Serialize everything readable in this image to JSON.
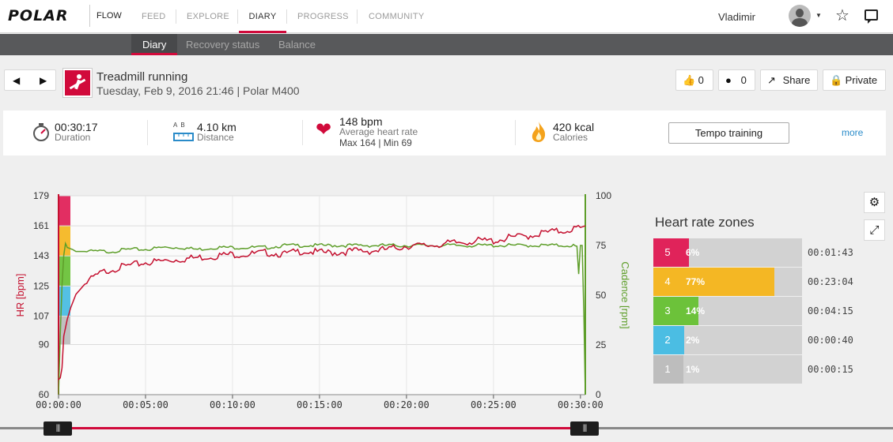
{
  "header": {
    "logo": "POLAR",
    "product": "FLOW",
    "nav": [
      {
        "label": "FEED",
        "active": false
      },
      {
        "label": "EXPLORE",
        "active": false
      },
      {
        "label": "DIARY",
        "active": true
      },
      {
        "label": "PROGRESS",
        "active": false
      },
      {
        "label": "COMMUNITY",
        "active": false
      }
    ],
    "user_name": "Vladimir",
    "icons": [
      "avatar",
      "caret-down-icon",
      "star-icon",
      "chat-icon"
    ]
  },
  "subnav": [
    {
      "label": "Diary",
      "active": true
    },
    {
      "label": "Recovery status",
      "active": false
    },
    {
      "label": "Balance",
      "active": false
    }
  ],
  "exercise": {
    "title": "Treadmill running",
    "subtitle": "Tuesday, Feb 9, 2016 21:46 | Polar M400",
    "likes": "0",
    "comments": "0",
    "share_label": "Share",
    "privacy_label": "Private"
  },
  "summary": {
    "duration_value": "00:30:17",
    "duration_label": "Duration",
    "distance_value": "4.10 km",
    "distance_label": "Distance",
    "distance_icon_text": "A  B",
    "hr_value": "148 bpm",
    "hr_label": "Average heart rate",
    "hr_minmax": "Max 164  |  Min 69",
    "calories_value": "420 kcal",
    "calories_label": "Calories",
    "training_button": "Tempo training",
    "more_label": "more"
  },
  "chart_data": {
    "type": "line",
    "left_axis_label": "HR [bpm]",
    "right_axis_label": "Cadence [rpm]",
    "left_ticks": [
      "179",
      "161",
      "143",
      "125",
      "107",
      "90",
      "60"
    ],
    "right_ticks": [
      "100",
      "75",
      "50",
      "25",
      "0"
    ],
    "x_ticks": [
      "00:00:00",
      "00:05:00",
      "00:10:00",
      "00:15:00",
      "00:20:00",
      "00:25:00",
      "00:30:00"
    ],
    "left_ylim": [
      60,
      179
    ],
    "right_ylim": [
      0,
      100
    ],
    "xlim_min": [
      0,
      30.28
    ],
    "grid": true,
    "zone_band_colors": [
      "#e0235a",
      "#f4b724",
      "#6cc23a",
      "#4bbde3",
      "#bdbdbd"
    ],
    "series": [
      {
        "name": "HR [bpm]",
        "color": "#c4102f",
        "x_min": [
          0,
          0.1,
          0.2,
          0.3,
          0.5,
          0.7,
          1,
          1.5,
          2,
          2.5,
          3,
          4,
          5,
          6,
          7,
          8,
          9,
          10,
          11,
          12,
          13,
          14,
          15,
          16,
          17,
          18,
          19,
          20,
          21,
          22,
          23,
          24,
          25,
          26,
          27,
          28,
          29,
          30,
          30.28
        ],
        "values": [
          69,
          70,
          76,
          95,
          105,
          112,
          120,
          126,
          130,
          133,
          135,
          137,
          139,
          140,
          141,
          142,
          143,
          144,
          144,
          145,
          144,
          146,
          145,
          145,
          146,
          146,
          147,
          149,
          149,
          150,
          151,
          152,
          152,
          154,
          155,
          157,
          158,
          160,
          161
        ]
      },
      {
        "name": "Cadence [rpm]",
        "color": "#5e9e2a",
        "x_min": [
          0,
          0.1,
          0.2,
          0.3,
          0.4,
          0.5,
          0.8,
          1,
          2,
          3,
          4,
          5,
          6,
          7,
          8,
          9,
          10,
          11,
          12,
          13,
          14,
          15,
          16,
          17,
          18,
          19,
          20,
          21,
          22,
          23,
          24,
          25,
          26,
          27,
          28,
          29,
          29.6,
          29.8,
          29.9,
          30,
          30.1,
          30.2,
          30.28
        ],
        "values": [
          0,
          30,
          55,
          70,
          76,
          74,
          73,
          72,
          72,
          72,
          73,
          73,
          74,
          74,
          73,
          74,
          74,
          74,
          74,
          75,
          75,
          75,
          75,
          75,
          75,
          75,
          75,
          75,
          75,
          75,
          75,
          75,
          75,
          75,
          75,
          75,
          75,
          74,
          60,
          75,
          75,
          40,
          0
        ]
      }
    ]
  },
  "zones": {
    "title": "Heart rate zones",
    "rows": [
      {
        "zone": "5",
        "pct": "6%",
        "fraction": 0.06,
        "time": "00:01:43",
        "color": "#e0235a"
      },
      {
        "zone": "4",
        "pct": "77%",
        "fraction": 0.77,
        "time": "00:23:04",
        "color": "#f4b724"
      },
      {
        "zone": "3",
        "pct": "14%",
        "fraction": 0.14,
        "time": "00:04:15",
        "color": "#6cc23a"
      },
      {
        "zone": "2",
        "pct": "2%",
        "fraction": 0.02,
        "time": "00:00:40",
        "color": "#4bbde3"
      },
      {
        "zone": "1",
        "pct": "1%",
        "fraction": 0.01,
        "time": "00:00:15",
        "color": "#bdbdbd"
      }
    ]
  },
  "slider": {
    "range_start": "00:00:00",
    "range_end": "00:30:00",
    "handle_glyph": "|||"
  }
}
